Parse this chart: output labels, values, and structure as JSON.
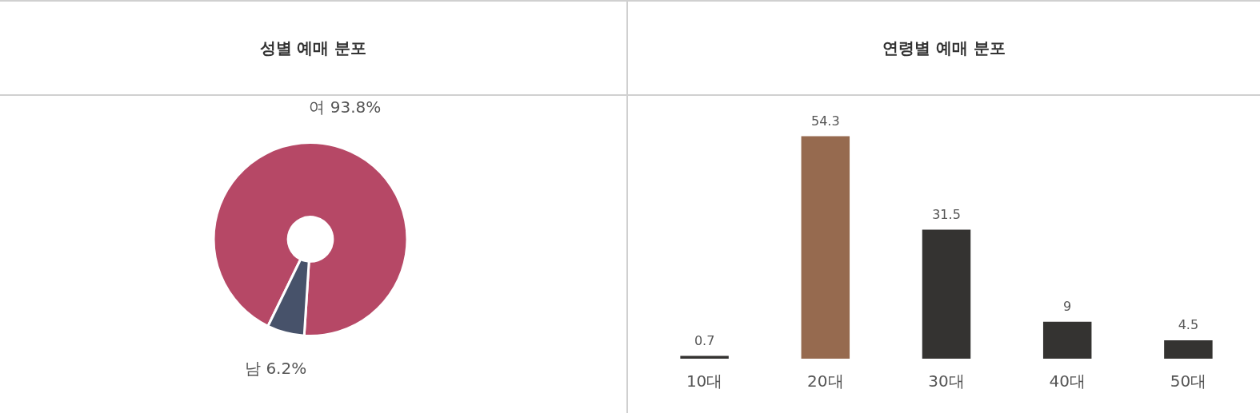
{
  "chart_data": [
    {
      "type": "donut",
      "title": "성별 예매 분포",
      "categories": [
        "여",
        "남"
      ],
      "values": [
        93.8,
        6.2
      ],
      "value_labels": [
        "93.8%",
        "6.2%"
      ],
      "colors": [
        "#b64866",
        "#47526a"
      ]
    },
    {
      "type": "bar",
      "title": "연령별 예매 분포",
      "categories": [
        "10대",
        "20대",
        "30대",
        "40대",
        "50대"
      ],
      "values": [
        0.7,
        54.3,
        31.5,
        9,
        4.5
      ],
      "colors": [
        "#343331",
        "#966a4f",
        "#343331",
        "#343331",
        "#343331"
      ],
      "data_labels": true
    }
  ]
}
